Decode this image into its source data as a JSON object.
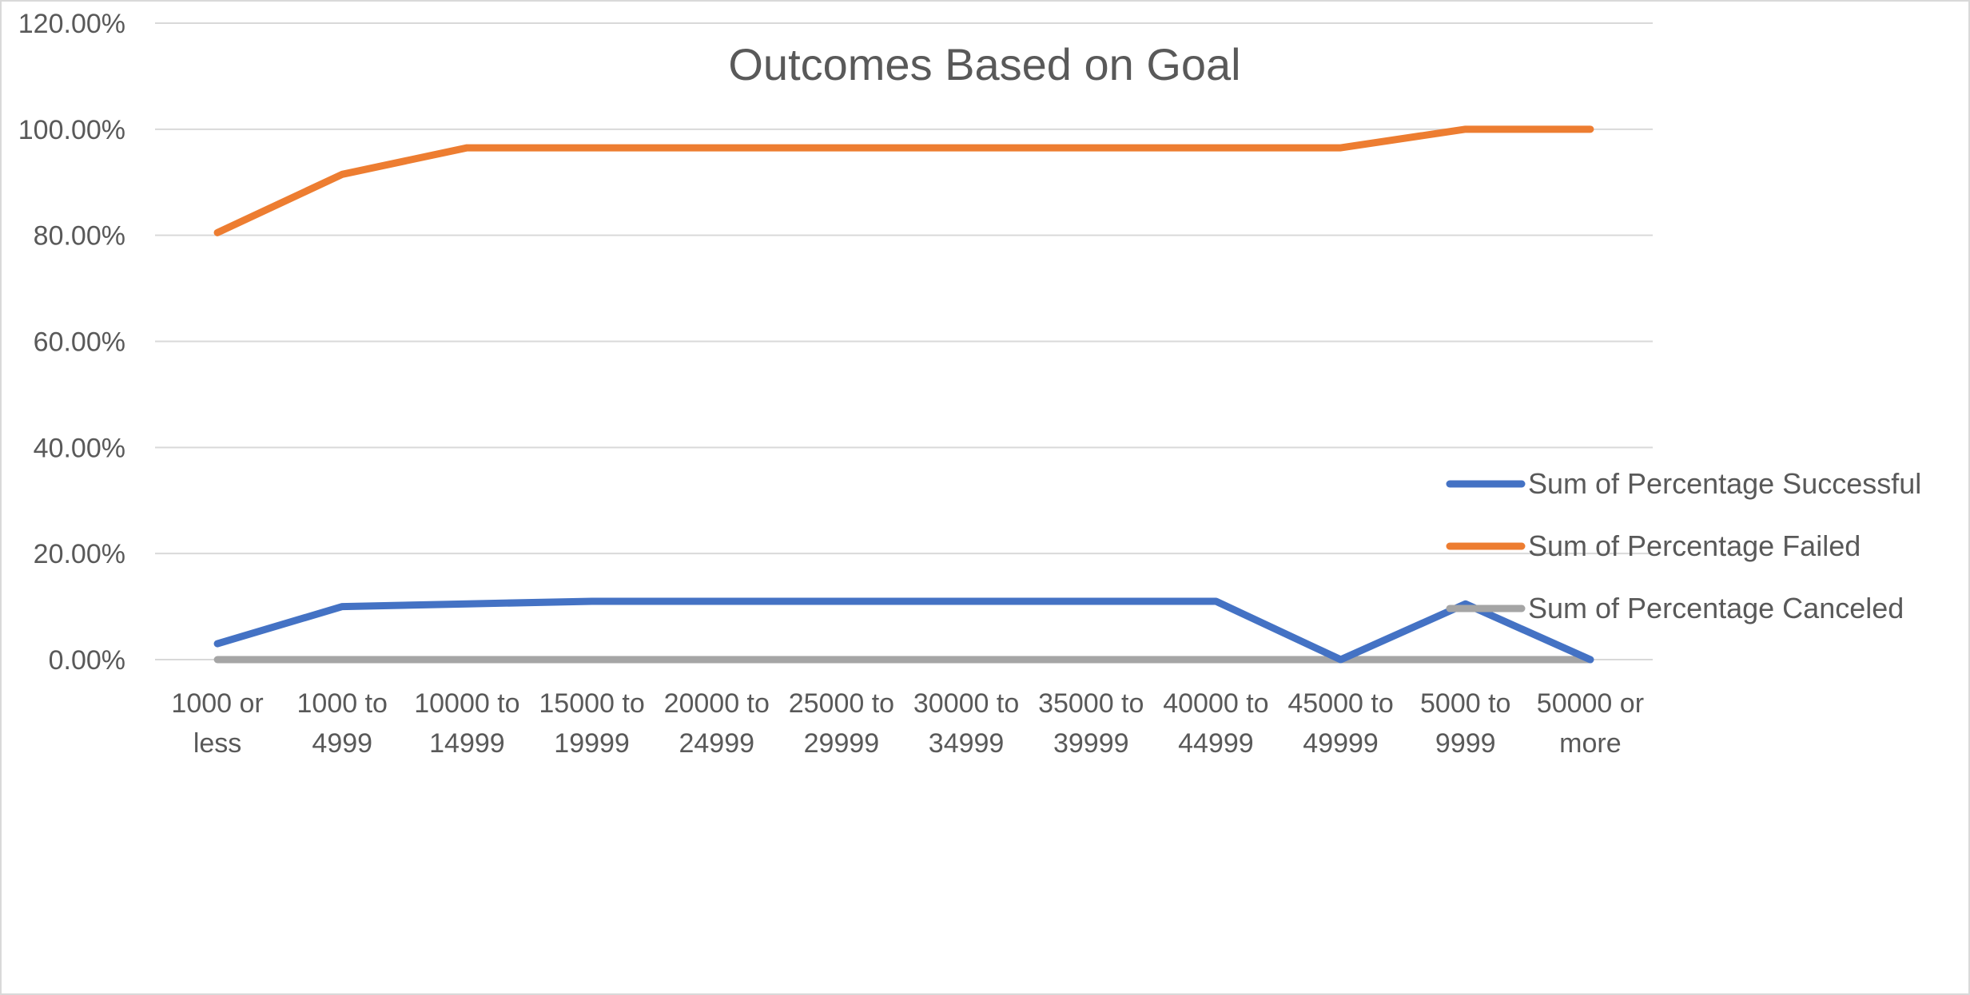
{
  "chart_data": {
    "type": "line",
    "title": "Outcomes Based on Goal",
    "xlabel": "",
    "ylabel": "",
    "categories": [
      [
        "1000 or",
        "less"
      ],
      [
        "1000 to",
        "4999"
      ],
      [
        "10000 to",
        "14999"
      ],
      [
        "15000 to",
        "19999"
      ],
      [
        "20000 to",
        "24999"
      ],
      [
        "25000 to",
        "29999"
      ],
      [
        "30000 to",
        "34999"
      ],
      [
        "35000 to",
        "39999"
      ],
      [
        "40000 to",
        "44999"
      ],
      [
        "45000 to",
        "49999"
      ],
      [
        "5000 to",
        "9999"
      ],
      [
        "50000 or",
        "more"
      ]
    ],
    "y_ticks": [
      "0.00%",
      "20.00%",
      "40.00%",
      "60.00%",
      "80.00%",
      "100.00%",
      "120.00%"
    ],
    "ylim": [
      0,
      1.2
    ],
    "grid": true,
    "legend_position": "right",
    "series": [
      {
        "name": "Sum of Percentage Successful",
        "color": "#4472c4",
        "values": [
          0.03,
          0.1,
          0.105,
          0.11,
          0.11,
          0.11,
          0.11,
          0.11,
          0.11,
          0.0,
          0.105,
          0.0
        ]
      },
      {
        "name": "Sum of Percentage Failed",
        "color": "#ed7d31",
        "values": [
          0.805,
          0.915,
          0.965,
          0.965,
          0.965,
          0.965,
          0.965,
          0.965,
          0.965,
          0.965,
          1.0,
          1.0
        ]
      },
      {
        "name": "Sum of Percentage Canceled",
        "color": "#a5a5a5",
        "values": [
          0,
          0,
          0,
          0,
          0,
          0,
          0,
          0,
          0,
          0,
          0,
          0
        ]
      }
    ]
  }
}
